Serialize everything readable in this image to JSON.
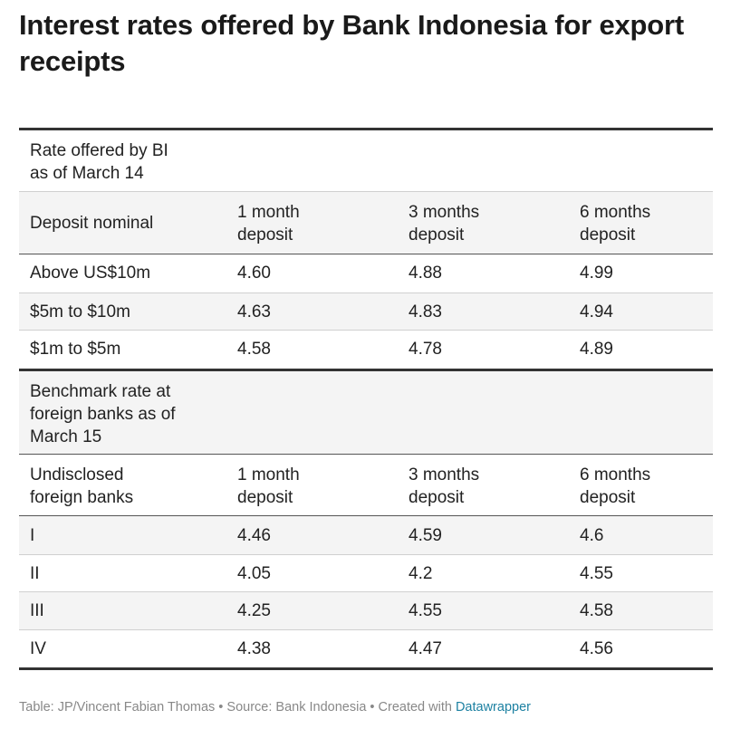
{
  "title": "Interest rates offered by Bank Indonesia for export receipts",
  "chart_data": {
    "type": "table",
    "title": "Interest rates offered by Bank Indonesia for export receipts",
    "sections": [
      {
        "heading": "Rate offered by BI\nas of March 14",
        "columns": [
          "Deposit nominal",
          "1 month\ndeposit",
          "3 months\ndeposit",
          "6 months\ndeposit"
        ],
        "rows": [
          [
            "Above US$10m",
            "4.60",
            "4.88",
            "4.99"
          ],
          [
            "$5m to $10m",
            "4.63",
            "4.83",
            "4.94"
          ],
          [
            "$1m to $5m",
            "4.58",
            "4.78",
            "4.89"
          ]
        ]
      },
      {
        "heading": "Benchmark rate at\nforeign banks as of\nMarch 15",
        "columns": [
          "Undisclosed\nforeign banks",
          "1 month\ndeposit",
          "3 months\ndeposit",
          "6 months\ndeposit"
        ],
        "rows": [
          [
            "I",
            "4.46",
            "4.59",
            "4.6"
          ],
          [
            "II",
            "4.05",
            "4.2",
            "4.55"
          ],
          [
            "III",
            "4.25",
            "4.55",
            "4.58"
          ],
          [
            "IV",
            "4.38",
            "4.47",
            "4.56"
          ]
        ]
      }
    ]
  },
  "footer": {
    "text": "Table: JP/Vincent Fabian Thomas • Source: Bank Indonesia • Created with ",
    "link": "Datawrapper"
  },
  "colors": {
    "text": "#222222",
    "shaded_row": "#f4f4f4",
    "rule": "#333333",
    "footer_text": "#888888",
    "footer_link": "#1d81a2"
  }
}
